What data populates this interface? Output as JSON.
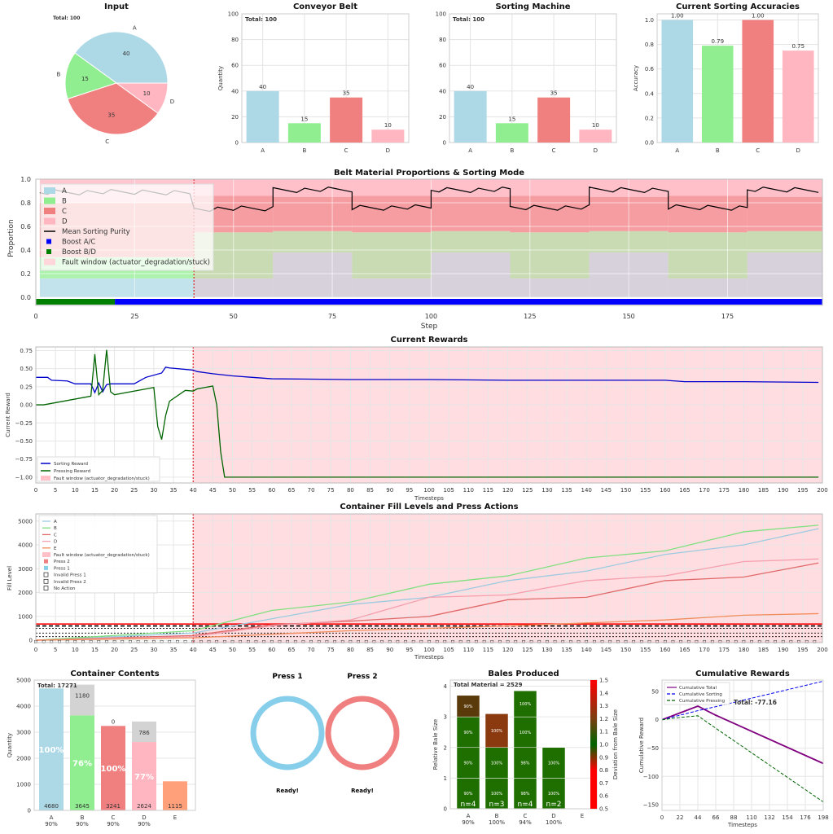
{
  "colors": {
    "A": "#add8e6",
    "B": "#90ee90",
    "C": "#f08080",
    "D": "#ffb6c1",
    "E": "#ffa07a",
    "fault": "#ffd6da",
    "boostAC": "#0000ff",
    "boostBD": "#008000",
    "sorting": "#0000cc",
    "pressing": "#006400",
    "purity": "#000000"
  },
  "input": {
    "title": "Input",
    "total_label": "Total: 100",
    "chart_data": {
      "type": "pie",
      "labels": [
        "A",
        "B",
        "C",
        "D"
      ],
      "values": [
        40,
        15,
        35,
        10
      ]
    }
  },
  "conveyor": {
    "title": "Conveyor Belt",
    "total_label": "Total: 100",
    "ylabel": "Quantity",
    "chart_data": {
      "type": "bar",
      "categories": [
        "A",
        "B",
        "C",
        "D"
      ],
      "values": [
        40,
        15,
        35,
        10
      ],
      "ylim": [
        0,
        100
      ],
      "yticks": [
        0,
        20,
        40,
        60,
        80,
        100
      ]
    }
  },
  "sorting_machine": {
    "title": "Sorting Machine",
    "total_label": "Total: 100",
    "chart_data": {
      "type": "bar",
      "categories": [
        "A",
        "B",
        "C",
        "D"
      ],
      "values": [
        40,
        15,
        35,
        10
      ],
      "ylim": [
        0,
        100
      ],
      "yticks": [
        0,
        20,
        40,
        60,
        80,
        100
      ]
    }
  },
  "accuracies": {
    "title": "Current Sorting Accuracies",
    "ylabel": "Accuracy",
    "chart_data": {
      "type": "bar",
      "categories": [
        "A",
        "B",
        "C",
        "D"
      ],
      "values": [
        1.0,
        0.79,
        1.0,
        0.75
      ],
      "labels": [
        "1.00",
        "0.79",
        "1.00",
        "0.75"
      ],
      "ylim": [
        0,
        1.05
      ],
      "yticks": [
        "0.0",
        "0.2",
        "0.4",
        "0.6",
        "0.8",
        "1.0"
      ]
    }
  },
  "belt": {
    "title": "Belt Material Proportions & Sorting Mode",
    "xlabel": "Step",
    "ylabel": "Proportion",
    "yticks": [
      "0.0",
      "0.2",
      "0.4",
      "0.6",
      "0.8",
      "1.0"
    ],
    "xticks": [
      "0",
      "25",
      "50",
      "75",
      "100",
      "125",
      "150",
      "175"
    ],
    "legend": [
      "A",
      "B",
      "C",
      "D",
      "Mean Sorting Purity",
      "Boost A/C",
      "Boost B/D",
      "Fault window (actuator_degradation/stuck)"
    ],
    "chart_data": {
      "type": "area",
      "xlim": [
        0,
        199
      ],
      "ylim": [
        0,
        1
      ],
      "fault_start": 40,
      "phases": [
        {
          "from": 1,
          "to": 40,
          "A": 0.16,
          "B": 0.18,
          "C": 0.46,
          "D": 0.2
        },
        {
          "from": 40,
          "to": 60,
          "A": 0.16,
          "B": 0.39,
          "C": 0.31,
          "D": 0.14
        },
        {
          "from": 60,
          "to": 80,
          "A": 0.38,
          "B": 0.18,
          "C": 0.29,
          "D": 0.15
        },
        {
          "from": 80,
          "to": 100,
          "A": 0.16,
          "B": 0.39,
          "C": 0.31,
          "D": 0.14
        },
        {
          "from": 100,
          "to": 120,
          "A": 0.38,
          "B": 0.18,
          "C": 0.29,
          "D": 0.15
        },
        {
          "from": 120,
          "to": 140,
          "A": 0.16,
          "B": 0.39,
          "C": 0.31,
          "D": 0.14
        },
        {
          "from": 140,
          "to": 160,
          "A": 0.38,
          "B": 0.18,
          "C": 0.29,
          "D": 0.15
        },
        {
          "from": 160,
          "to": 180,
          "A": 0.16,
          "B": 0.39,
          "C": 0.31,
          "D": 0.14
        },
        {
          "from": 180,
          "to": 199,
          "A": 0.38,
          "B": 0.18,
          "C": 0.29,
          "D": 0.15
        }
      ],
      "purity_levels": [
        {
          "from": 1,
          "to": 40,
          "v": 0.89
        },
        {
          "from": 40,
          "to": 60,
          "v": 0.75
        },
        {
          "from": 60,
          "to": 80,
          "v": 0.91
        },
        {
          "from": 80,
          "to": 100,
          "v": 0.76
        },
        {
          "from": 100,
          "to": 120,
          "v": 0.91
        },
        {
          "from": 120,
          "to": 140,
          "v": 0.76
        },
        {
          "from": 140,
          "to": 160,
          "v": 0.91
        },
        {
          "from": 160,
          "to": 180,
          "v": 0.76
        },
        {
          "from": 180,
          "to": 199,
          "v": 0.91
        }
      ],
      "mode": [
        {
          "from": 0,
          "to": 20,
          "mode": "Boost B/D"
        },
        {
          "from": 20,
          "to": 199,
          "mode": "Boost A/C"
        }
      ]
    }
  },
  "rewards": {
    "title": "Current Rewards",
    "xlabel": "Timesteps",
    "ylabel": "Current Reward",
    "legend": [
      "Sorting Reward",
      "Pressing Reward",
      "Fault window (actuator_degradation/stuck)"
    ],
    "yticks": [
      "0.75",
      "0.50",
      "0.25",
      "0.00",
      "−0.25",
      "−0.50",
      "−0.75",
      "−1.00"
    ],
    "chart_data": {
      "type": "line",
      "xlim": [
        0,
        200
      ],
      "ylim": [
        -1.08,
        0.8
      ],
      "fault_start": 40,
      "series": [
        {
          "name": "Sorting Reward",
          "x": [
            0,
            3,
            4,
            8,
            10,
            14,
            15,
            16,
            17,
            18,
            19,
            20,
            25,
            27,
            28,
            32,
            33,
            34,
            40,
            41,
            45,
            50,
            55,
            60,
            80,
            100,
            120,
            140,
            160,
            165,
            170,
            175,
            180,
            199
          ],
          "y": [
            0.38,
            0.38,
            0.34,
            0.33,
            0.29,
            0.29,
            0.17,
            0.3,
            0.18,
            0.28,
            0.29,
            0.29,
            0.29,
            0.35,
            0.38,
            0.44,
            0.52,
            0.51,
            0.48,
            0.46,
            0.43,
            0.4,
            0.38,
            0.36,
            0.35,
            0.35,
            0.34,
            0.34,
            0.34,
            0.32,
            0.32,
            0.32,
            0.32,
            0.31
          ]
        },
        {
          "name": "Pressing Reward",
          "x": [
            0,
            2,
            14,
            15,
            16,
            17,
            18,
            19,
            20,
            30,
            31,
            32,
            33,
            34,
            38,
            40,
            41,
            45,
            46,
            47,
            48,
            49,
            60,
            199
          ],
          "y": [
            0.0,
            0.0,
            0.12,
            0.7,
            0.14,
            0.2,
            0.76,
            0.18,
            0.14,
            0.24,
            -0.3,
            -0.48,
            -0.15,
            0.05,
            0.2,
            0.19,
            0.22,
            0.26,
            0.0,
            -0.65,
            -1.0,
            -1.0,
            -1.0,
            -1.0
          ]
        }
      ]
    }
  },
  "fill": {
    "title": "Container Fill Levels and Press Actions",
    "xlabel": "Timesteps",
    "ylabel": "Fill Level",
    "legend": [
      "A",
      "B",
      "C",
      "D",
      "E",
      "Fault window (actuator_degradation/stuck)",
      "Press 2",
      "Press 1",
      "Invalid Press 1",
      "Invalid Press 2",
      "No Action"
    ],
    "yticks": [
      "0",
      "1000",
      "2000",
      "3000",
      "4000",
      "5000"
    ],
    "chart_data": {
      "type": "line",
      "xlim": [
        0,
        200
      ],
      "ylim": [
        -100,
        5300
      ],
      "fault_start": 40,
      "series": [
        {
          "name": "A",
          "x": [
            0,
            20,
            40,
            60,
            80,
            100,
            120,
            140,
            160,
            180,
            199
          ],
          "y": [
            0,
            150,
            300,
            900,
            1500,
            1800,
            2500,
            2900,
            3600,
            4000,
            4680
          ]
        },
        {
          "name": "B",
          "x": [
            0,
            20,
            40,
            60,
            80,
            100,
            120,
            140,
            160,
            180,
            199
          ],
          "y": [
            0,
            200,
            400,
            1250,
            1600,
            2350,
            2700,
            3450,
            3750,
            4550,
            4825
          ]
        },
        {
          "name": "C",
          "x": [
            0,
            20,
            40,
            60,
            80,
            100,
            120,
            140,
            160,
            180,
            199
          ],
          "y": [
            0,
            100,
            200,
            650,
            800,
            1000,
            1700,
            1800,
            2500,
            2650,
            3241
          ]
        },
        {
          "name": "D",
          "x": [
            0,
            20,
            40,
            60,
            80,
            100,
            120,
            140,
            160,
            180,
            199
          ],
          "y": [
            0,
            80,
            150,
            600,
            850,
            1800,
            1900,
            2500,
            2700,
            3300,
            3410
          ]
        },
        {
          "name": "E",
          "x": [
            0,
            40,
            80,
            120,
            160,
            180,
            199
          ],
          "y": [
            0,
            100,
            400,
            600,
            850,
            1050,
            1115
          ]
        }
      ],
      "hlines": [
        600,
        680,
        500,
        300,
        150
      ]
    }
  },
  "container": {
    "title": "Container Contents",
    "total_label": "Total: 17271",
    "ylabel": "Quantity",
    "yticks": [
      "0",
      "1000",
      "2000",
      "3000",
      "4000",
      "5000"
    ],
    "chart_data": {
      "type": "bar",
      "categories": [
        "A",
        "B",
        "C",
        "D",
        "E"
      ],
      "sub": [
        "90%",
        "90%",
        "90%",
        "90%",
        ""
      ],
      "pure": [
        4680,
        3645,
        3241,
        2624,
        1115
      ],
      "impure": [
        0,
        1180,
        0,
        786,
        0
      ],
      "pure_labels": [
        "4680",
        "3645",
        "3241",
        "2624",
        "1115"
      ],
      "impure_labels": [
        "",
        "1180",
        "0",
        "786",
        ""
      ],
      "pct": [
        "100%",
        "76%",
        "100%",
        "77%",
        ""
      ],
      "ylim": [
        0,
        5000
      ]
    }
  },
  "press": {
    "p1_title": "Press 1",
    "p1_status": "Ready!",
    "p2_title": "Press 2",
    "p2_status": "Ready!"
  },
  "bales": {
    "title": "Bales Produced",
    "total_label": "Total Material = 2529",
    "ylabel": "Relative Bale Size",
    "cbar_label": "Deviation from Bale Size",
    "yticks": [
      "0",
      "1",
      "2",
      "3",
      "4"
    ],
    "cbar_ticks": [
      "0.5",
      "0.6",
      "0.7",
      "0.8",
      "0.9",
      "1.0",
      "1.1",
      "1.2",
      "1.3",
      "1.4",
      "1.5"
    ],
    "chart_data": {
      "type": "bar",
      "categories": [
        "A",
        "B",
        "C",
        "D",
        "E"
      ],
      "sub": [
        "90%",
        "100%",
        "94%",
        "100%",
        ""
      ],
      "n": [
        "n=4",
        "n=3",
        "n=4",
        "n=2",
        ""
      ],
      "stacks": [
        [
          1,
          1,
          1,
          0.7
        ],
        [
          1,
          1,
          1.1
        ],
        [
          1,
          1,
          1,
          0.85
        ],
        [
          1,
          1
        ]
      ],
      "stack_labels": [
        [
          "90%",
          "90%",
          "90%",
          "90%"
        ],
        [
          "100%",
          "100%",
          "100%"
        ],
        [
          "98%",
          "98%",
          "100%",
          "100%"
        ],
        [
          "100%",
          "100%"
        ]
      ],
      "ylim": [
        0,
        4.2
      ]
    }
  },
  "cumulative": {
    "title": "Cumulative Rewards",
    "xlabel": "Timesteps",
    "ylabel": "Cumulative Reward",
    "legend": [
      "Cumulative Total",
      "Cumulative Sorting",
      "Cumulative Pressing"
    ],
    "total_label": "Total: -77.16",
    "xticks": [
      "0",
      "22",
      "44",
      "66",
      "88",
      "110",
      "132",
      "154",
      "176",
      "198"
    ],
    "yticks": [
      "50",
      "0",
      "−50",
      "−100",
      "−150"
    ],
    "chart_data": {
      "type": "line",
      "xlim": [
        0,
        198
      ],
      "ylim": [
        -160,
        70
      ],
      "series": [
        {
          "name": "Cumulative Total",
          "x": [
            0,
            22,
            44,
            66,
            198
          ],
          "y": [
            0,
            12,
            24,
            8,
            -77.16
          ]
        },
        {
          "name": "Cumulative Sorting",
          "x": [
            0,
            22,
            44,
            66,
            198
          ],
          "y": [
            0,
            8,
            16,
            23,
            68
          ]
        },
        {
          "name": "Cumulative Pressing",
          "x": [
            0,
            22,
            44,
            66,
            198
          ],
          "y": [
            0,
            4,
            7,
            -15,
            -145
          ]
        }
      ]
    }
  }
}
